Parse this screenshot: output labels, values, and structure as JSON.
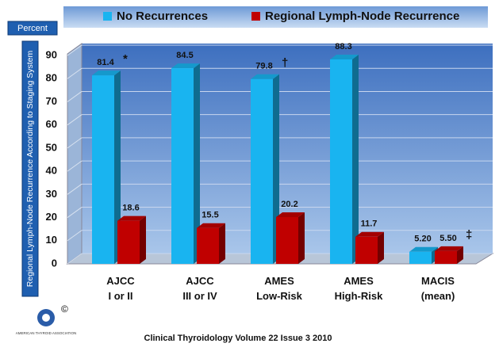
{
  "chart_data": {
    "type": "bar3d",
    "unit_label": "Percent",
    "ylabel": "Regional Lymph-Node Recurrence According to Staging System",
    "categories": [
      "AJCC\nI or II",
      "AJCC\nIII or IV",
      "AMES\nLow-Risk",
      "AMES\nHigh-Risk",
      "MACIS\n(mean)"
    ],
    "series": [
      {
        "name": "No Recurrences",
        "color": "#19b4f0",
        "values": [
          81.4,
          84.5,
          79.8,
          88.3,
          5.2
        ],
        "value_labels": [
          "81.4",
          "84.5",
          "79.8",
          "88.3",
          "5.20"
        ]
      },
      {
        "name": "Regional Lymph-Node Recurrence",
        "color": "#c00000",
        "values": [
          18.6,
          15.5,
          20.2,
          11.7,
          5.5
        ],
        "value_labels": [
          "18.6",
          "15.5",
          "20.2",
          "11.7",
          "5.50"
        ]
      }
    ],
    "annotations": [
      {
        "text": "*",
        "series": 0,
        "index": 0
      },
      {
        "text": "†",
        "series": 0,
        "index": 2
      },
      {
        "text": "‡",
        "series": 1,
        "index": 4
      }
    ],
    "ylim": [
      0,
      90
    ],
    "yticks": [
      0,
      10,
      20,
      30,
      40,
      50,
      60,
      70,
      80,
      90
    ],
    "grid": true,
    "footer": "Clinical Thyroidology Volume 22 Issue 3 2010",
    "logo": {
      "text": "AMERICAN THYROID ASSOCIATION",
      "mark": "©"
    }
  }
}
